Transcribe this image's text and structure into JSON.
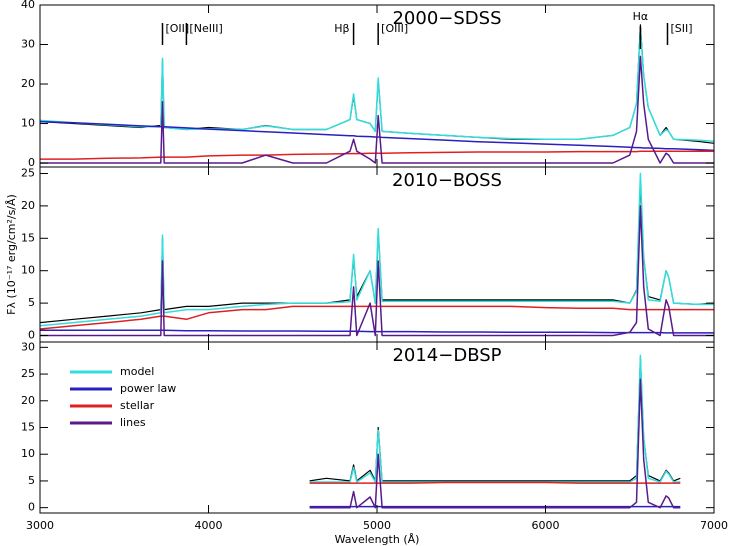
{
  "chart_data": [
    {
      "type": "line",
      "title": "2000−SDSS",
      "xlim": [
        3000,
        7000
      ],
      "xticks": [
        3000,
        4000,
        5000,
        6000,
        7000
      ],
      "ylim": [
        -1,
        40
      ],
      "yticks": [
        0,
        10,
        20,
        30,
        40
      ],
      "annotations": [
        {
          "text": "[OII]",
          "x": 3727
        },
        {
          "text": "[NeIII]",
          "x": 3869
        },
        {
          "text": "Hβ",
          "x": 4861
        },
        {
          "text": "[OIII]",
          "x": 5007
        },
        {
          "text": "Hα",
          "x": 6563
        },
        {
          "text": "[SII]",
          "x": 6724
        }
      ],
      "x": [
        3000,
        3200,
        3400,
        3600,
        3717,
        3727,
        3737,
        3869,
        4000,
        4200,
        4340,
        4500,
        4700,
        4840,
        4861,
        4880,
        4959,
        4990,
        5007,
        5030,
        5200,
        5400,
        5600,
        5800,
        6000,
        6200,
        6400,
        6500,
        6540,
        6563,
        6583,
        6610,
        6680,
        6716,
        6731,
        6760,
        6900,
        7000
      ],
      "series": [
        {
          "color": "#000000",
          "values": [
            10.5,
            10,
            9.5,
            9,
            9.5,
            26,
            9,
            8.5,
            9,
            8.5,
            9.5,
            8.5,
            8.5,
            11,
            17,
            11,
            10,
            8,
            21,
            8,
            7.5,
            7,
            6.5,
            6,
            6,
            6,
            7,
            9,
            15,
            35,
            22,
            14,
            7,
            9,
            8,
            6,
            5.5,
            5
          ]
        },
        {
          "color": "#33dddd",
          "values": [
            10.8,
            10.2,
            9.7,
            9.2,
            9.2,
            26.5,
            9,
            8.5,
            8.7,
            8.5,
            9.4,
            8.5,
            8.5,
            11,
            17.5,
            11,
            10,
            8,
            21.5,
            8,
            7.5,
            7,
            6.5,
            6.2,
            6,
            6,
            7,
            9,
            15,
            34,
            22,
            14,
            7,
            8.5,
            8,
            6,
            5.8,
            5.5
          ]
        },
        {
          "color": "#2a1fc0",
          "values": [
            10.5,
            10.2,
            9.8,
            9.4,
            9.2,
            9.2,
            9.2,
            8.9,
            8.6,
            8.2,
            7.9,
            7.6,
            7.2,
            6.9,
            6.9,
            6.8,
            6.7,
            6.6,
            6.6,
            6.5,
            6.2,
            5.8,
            5.4,
            5.1,
            4.8,
            4.5,
            4.2,
            4,
            3.9,
            3.9,
            3.8,
            3.8,
            3.7,
            3.6,
            3.6,
            3.6,
            3.4,
            3.2
          ]
        },
        {
          "color": "#e02020",
          "values": [
            1,
            1,
            1.2,
            1.3,
            1.5,
            1.5,
            1.5,
            1.5,
            1.8,
            2,
            2,
            2.2,
            2.3,
            2.4,
            2.4,
            2.4,
            2.5,
            2.5,
            2.5,
            2.5,
            2.6,
            2.7,
            2.8,
            2.8,
            2.8,
            2.9,
            2.9,
            2.9,
            2.9,
            3,
            3,
            3,
            3,
            3,
            3,
            3,
            3,
            3
          ]
        },
        {
          "color": "#5a1a8a",
          "values": [
            0,
            0,
            0,
            0,
            0,
            15.5,
            0,
            0,
            0,
            0,
            2,
            0,
            0,
            3,
            6,
            3,
            1,
            0,
            12,
            0,
            0,
            0,
            0,
            0,
            0,
            0,
            0,
            2,
            8,
            27,
            15,
            6,
            0,
            2.5,
            2,
            0,
            0,
            0
          ]
        }
      ]
    },
    {
      "type": "line",
      "title": "2010−BOSS",
      "ylabel": "Fλ (10⁻¹⁷ erg/cm²/s/Å)",
      "xlim": [
        3000,
        7000
      ],
      "xticks": [
        3000,
        4000,
        5000,
        6000,
        7000
      ],
      "ylim": [
        -1,
        26
      ],
      "yticks": [
        0,
        5,
        10,
        15,
        20,
        25
      ],
      "x": [
        3000,
        3200,
        3400,
        3600,
        3717,
        3727,
        3737,
        3869,
        4000,
        4200,
        4340,
        4500,
        4700,
        4840,
        4861,
        4880,
        4959,
        4990,
        5007,
        5030,
        5200,
        5400,
        5600,
        5800,
        6000,
        6200,
        6400,
        6500,
        6540,
        6563,
        6583,
        6610,
        6680,
        6716,
        6731,
        6760,
        6900,
        7000
      ],
      "series": [
        {
          "color": "#000000",
          "values": [
            2,
            2.5,
            3,
            3.5,
            4,
            15,
            4,
            4.5,
            4.5,
            5,
            5,
            5,
            5,
            5.5,
            12,
            6,
            10,
            5,
            16,
            5.5,
            5.5,
            5.5,
            5.5,
            5.5,
            5.5,
            5.5,
            5.5,
            5,
            7,
            24,
            12,
            6,
            5.5,
            10,
            9,
            5,
            4.8,
            5
          ]
        },
        {
          "color": "#33dddd",
          "values": [
            1.5,
            2,
            2.5,
            3,
            3.5,
            15.5,
            3.5,
            4,
            4,
            4.5,
            4.8,
            5,
            5,
            5.2,
            12.5,
            5.5,
            10,
            5,
            16.5,
            5.3,
            5.3,
            5.3,
            5.3,
            5.3,
            5.3,
            5.3,
            5.3,
            5,
            6.8,
            25,
            12,
            5.5,
            5.3,
            10,
            9,
            5,
            4.8,
            4.8
          ]
        },
        {
          "color": "#2a1fc0",
          "values": [
            0.8,
            0.8,
            0.8,
            0.8,
            0.8,
            0.8,
            0.8,
            0.75,
            0.75,
            0.7,
            0.7,
            0.7,
            0.65,
            0.65,
            0.65,
            0.65,
            0.6,
            0.6,
            0.6,
            0.6,
            0.6,
            0.55,
            0.55,
            0.5,
            0.5,
            0.5,
            0.45,
            0.45,
            0.45,
            0.45,
            0.45,
            0.45,
            0.45,
            0.4,
            0.4,
            0.4,
            0.4,
            0.4
          ]
        },
        {
          "color": "#e02020",
          "values": [
            1,
            1.5,
            2,
            2.5,
            3,
            3,
            3,
            2.5,
            3.5,
            4,
            4,
            4.5,
            4.5,
            4.5,
            4.5,
            4.5,
            4.5,
            4.5,
            4.5,
            4.5,
            4.5,
            4.5,
            4.5,
            4.5,
            4.3,
            4.2,
            4.2,
            4,
            4,
            4,
            4,
            4,
            4,
            4,
            4,
            4,
            4,
            4
          ]
        },
        {
          "color": "#5a1a8a",
          "values": [
            0,
            0,
            0,
            0,
            0,
            11.5,
            0,
            0,
            0,
            0,
            0,
            0,
            0,
            0,
            7.5,
            0,
            5,
            0,
            11.5,
            0,
            0,
            0,
            0,
            0,
            0,
            0,
            0,
            0.5,
            2,
            20,
            7.5,
            1,
            0,
            5.5,
            4.5,
            0,
            0,
            0
          ]
        }
      ]
    },
    {
      "type": "line",
      "title": "2014−DBSP",
      "xlabel": "Wavelength (Å)",
      "legend": "upper left",
      "xlim": [
        3000,
        7000
      ],
      "xticks": [
        3000,
        4000,
        5000,
        6000,
        7000
      ],
      "ylim": [
        -1,
        31
      ],
      "yticks": [
        0,
        5,
        10,
        15,
        20,
        25,
        30
      ],
      "x": [
        4600,
        4700,
        4840,
        4861,
        4880,
        4959,
        4990,
        5007,
        5030,
        5200,
        5400,
        5600,
        5800,
        6000,
        6200,
        6400,
        6500,
        6540,
        6563,
        6583,
        6610,
        6680,
        6716,
        6731,
        6760,
        6800
      ],
      "series": [
        {
          "color": "#000000",
          "values": [
            5,
            5.5,
            5,
            8,
            5,
            7,
            5,
            15,
            5,
            5,
            5,
            5,
            5,
            5,
            5,
            5,
            5,
            6,
            28,
            13,
            6,
            5,
            7,
            6.5,
            5,
            5.5
          ]
        },
        {
          "name": "model",
          "color": "#33dddd",
          "values": [
            4.8,
            4.8,
            4.8,
            7.5,
            4.8,
            6.5,
            4.8,
            14.5,
            4.8,
            4.8,
            4.8,
            4.8,
            4.8,
            4.8,
            4.8,
            4.8,
            4.8,
            5.5,
            28.5,
            13,
            5.5,
            4.8,
            6.8,
            6.3,
            4.8,
            4.8
          ]
        },
        {
          "name": "power law",
          "color": "#2a1fc0",
          "values": [
            0.2,
            0.2,
            0.2,
            0.2,
            0.2,
            0.2,
            0.2,
            0.2,
            0.2,
            0.2,
            0.2,
            0.2,
            0.2,
            0.2,
            0.2,
            0.2,
            0.2,
            0.2,
            0.2,
            0.2,
            0.2,
            0.2,
            0.2,
            0.2,
            0.2,
            0.2
          ]
        },
        {
          "name": "stellar",
          "color": "#e02020",
          "values": [
            4.6,
            4.6,
            4.6,
            4.6,
            4.6,
            4.6,
            4.6,
            4.6,
            4.6,
            4.6,
            4.7,
            4.7,
            4.7,
            4.7,
            4.6,
            4.6,
            4.6,
            4.6,
            4.6,
            4.6,
            4.6,
            4.6,
            4.6,
            4.6,
            4.6,
            4.6
          ]
        },
        {
          "name": "lines",
          "color": "#5a1a8a",
          "values": [
            0,
            0,
            0,
            3,
            0,
            2,
            0,
            10,
            0,
            0,
            0,
            0,
            0,
            0,
            0,
            0,
            0,
            1,
            24,
            9,
            1,
            0,
            2.2,
            1.8,
            0,
            0
          ]
        }
      ]
    }
  ]
}
